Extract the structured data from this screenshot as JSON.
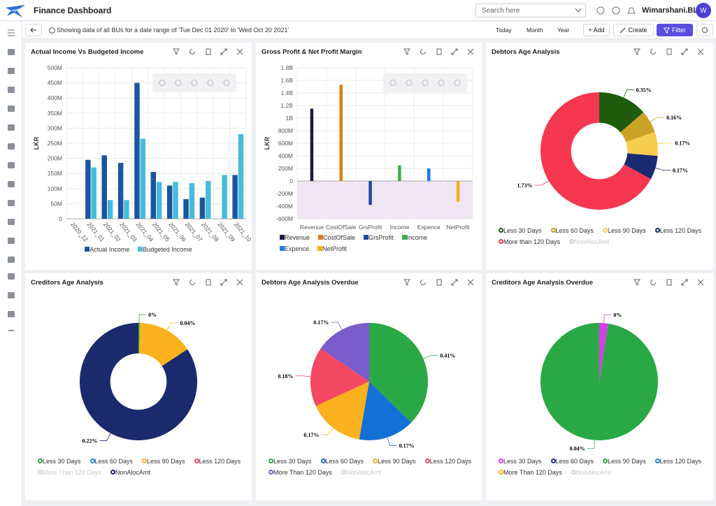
{
  "header": {
    "title": "Finance Dashboard",
    "search_placeholder": "Search here",
    "user": "Wimarshani.BL",
    "avatar": "W"
  },
  "toolbar": {
    "info": "Showing data of all BUs for a date range of 'Tue Dec 01 2020' to 'Wed Oct 20 2021'",
    "periods": [
      "Today",
      "Month",
      "Year"
    ],
    "add": "+ Add",
    "create": "Create",
    "filter": "Filter"
  },
  "chart_data": [
    {
      "type": "bar",
      "title": "Actual Income Vs Budgeted Income",
      "ylabel": "LKR",
      "categories": [
        "2020_12",
        "2021_01",
        "2021_02",
        "2021_03",
        "2021_04",
        "2021_05",
        "2021_06",
        "2021_07",
        "2021_08",
        "2021_09",
        "2021_10"
      ],
      "series": [
        {
          "name": "Actual Income",
          "color": "#1a56a0",
          "values": [
            0,
            195,
            210,
            185,
            450,
            155,
            110,
            65,
            70,
            0,
            145
          ]
        },
        {
          "name": "Budgeted Income",
          "color": "#45bcd8",
          "values": [
            0,
            170,
            62,
            62,
            265,
            122,
            122,
            118,
            125,
            145,
            280
          ]
        }
      ],
      "ylim": [
        0,
        500
      ],
      "yticks": [
        0,
        {
          "value": 50,
          "label": "50M"
        },
        {
          "value": 100,
          "label": "100M"
        },
        {
          "value": 150,
          "label": "150M"
        },
        {
          "value": 200,
          "label": "200M"
        },
        {
          "value": 250,
          "label": "250M"
        },
        {
          "value": 300,
          "label": "300M"
        },
        {
          "value": 350,
          "label": "350M"
        },
        {
          "value": 400,
          "label": "400M"
        },
        {
          "value": 450,
          "label": "450M"
        },
        {
          "value": 500,
          "label": "500M"
        }
      ],
      "grid": true
    },
    {
      "type": "bar",
      "title": "Gross Profit & Net Profit Margin",
      "ylabel": "LKR",
      "stacked": true,
      "negative_fill": "#f1e6f4",
      "categories": [
        "Revenue",
        "CostOfSale",
        "GrsProfit",
        "Income",
        "Expence",
        "NetProfit"
      ],
      "series": [
        {
          "name": "Revenue",
          "color": "#1b1a40",
          "values": [
            1150,
            null,
            null,
            null,
            null,
            null
          ]
        },
        {
          "name": "CostOfSale",
          "color": "#d97f0f",
          "values": [
            null,
            1530,
            null,
            null,
            null,
            null
          ]
        },
        {
          "name": "GrsProfit",
          "color": "#1f4aa0",
          "values": [
            null,
            null,
            -380,
            null,
            null,
            null
          ]
        },
        {
          "name": "Income",
          "color": "#3cae4a",
          "values": [
            null,
            null,
            null,
            250,
            null,
            null
          ]
        },
        {
          "name": "Expence",
          "color": "#1e7bf0",
          "values": [
            null,
            null,
            null,
            null,
            200,
            null
          ]
        },
        {
          "name": "NetProfit",
          "color": "#f2b01e",
          "values": [
            null,
            null,
            null,
            null,
            null,
            -330
          ]
        }
      ],
      "ylim": [
        -600,
        1800
      ],
      "yticks": [
        {
          "value": -600,
          "label": "-600M"
        },
        {
          "value": -400,
          "label": "-400M"
        },
        {
          "value": -200,
          "label": "-200M"
        },
        0,
        {
          "value": 200,
          "label": "200M"
        },
        {
          "value": 400,
          "label": "400M"
        },
        {
          "value": 600,
          "label": "600M"
        },
        {
          "value": 800,
          "label": "800M"
        },
        {
          "value": 1000,
          "label": "1B"
        },
        {
          "value": 1200,
          "label": "1.2B"
        },
        {
          "value": 1400,
          "label": "1.4B"
        },
        {
          "value": 1600,
          "label": "1.6B"
        },
        {
          "value": 1800,
          "label": "1.8B"
        }
      ],
      "grid": true
    },
    {
      "type": "donut",
      "title": "Debtors Age Analysis",
      "categories": [
        "Less 30 Days",
        "Less 60 Days",
        "Less 90 Days",
        "Less 120 Days",
        "More than 120 Days",
        "NonAlocAmt"
      ],
      "values": [
        0.35,
        0.16,
        0.17,
        0.17,
        1.73,
        null
      ],
      "value_labels": [
        "0.35%",
        "0.16%",
        "0.17%",
        "0.17%",
        "1.73%",
        null
      ],
      "colors": [
        "#1f5c0e",
        "#c9a227",
        "#f7cd50",
        "#1a2a72",
        "#f5384f",
        "#cccccc"
      ],
      "disabled": [
        5
      ]
    },
    {
      "type": "donut",
      "title": "Creditors Age Analysis",
      "categories": [
        "Less 30 Days",
        "Less 60 Days",
        "Less 90 Days",
        "Less 120 Days",
        "More Than 120 Days",
        "NonAlocAmt"
      ],
      "values": [
        0.001,
        null,
        0.04,
        null,
        null,
        0.22
      ],
      "value_labels": [
        "0%",
        null,
        "0.04%",
        null,
        null,
        "0.22%"
      ],
      "colors": [
        "#2aa845",
        "#1e88e5",
        "#fbb01e",
        "#f54862",
        "#cccccc",
        "#1a2a6c"
      ],
      "disabled": [
        4
      ]
    },
    {
      "type": "pie",
      "title": "Debtors Age Analysis Overdue",
      "categories": [
        "Less 30 Days",
        "Less 60 Days",
        "Less 90 Days",
        "Less 120 Days",
        "More Than 120 Days",
        "NonAlocAmt"
      ],
      "values": [
        0.41,
        0.17,
        0.17,
        0.18,
        0.17,
        null
      ],
      "value_labels": [
        "0.41%",
        "0.17%",
        "0.17%",
        "0.18%",
        "0.17%",
        null
      ],
      "colors": [
        "#2aa845",
        "#1570d6",
        "#fbb01e",
        "#f54862",
        "#7a5ccc",
        "#cccccc"
      ],
      "disabled": [
        5
      ]
    },
    {
      "type": "pie",
      "title": "Creditors Age Analysis Overdue",
      "categories": [
        "Less 30 Days",
        "Less 60 Days",
        "Less 90 Days",
        "Less 120 Days",
        "More Than 120 Days",
        "NonAlocAmt"
      ],
      "values": [
        0.001,
        null,
        0.04,
        null,
        null,
        null
      ],
      "value_labels": [
        "0%",
        null,
        "0.04%",
        null,
        null,
        null
      ],
      "colors": [
        "#d63ee8",
        "#1a3a8a",
        "#2aa845",
        "#1e88e5",
        "#fbb01e",
        "#cccccc"
      ],
      "disabled": [
        5
      ]
    }
  ]
}
